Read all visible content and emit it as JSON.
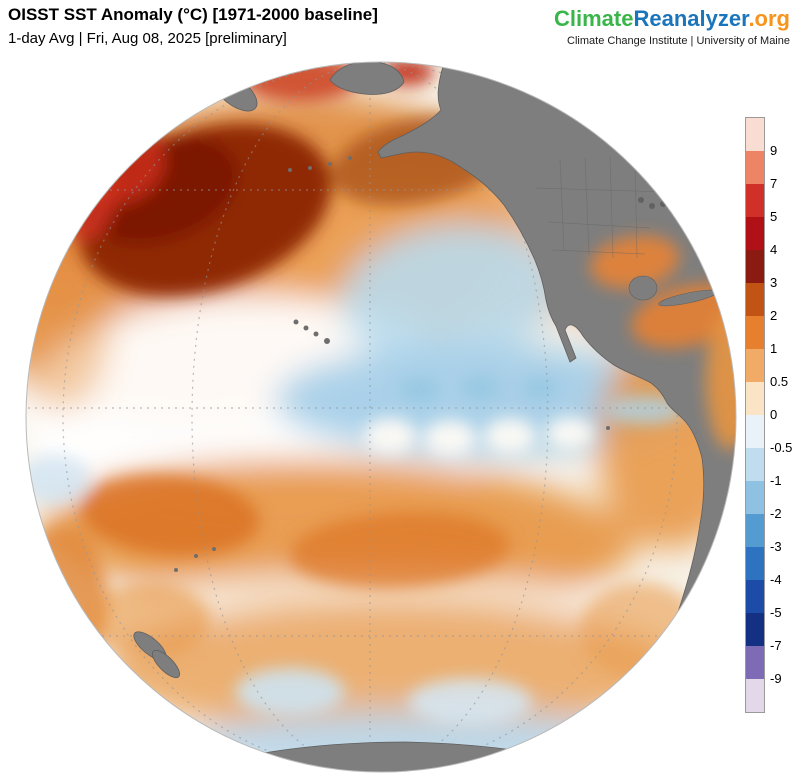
{
  "header": {
    "title": "OISST SST Anomaly (°C) [1971-2000 baseline]",
    "subtitle": "1-day Avg | Fri, Aug 08, 2025 [preliminary]"
  },
  "brand": {
    "climate": "Climate",
    "reanalyzer": "Reanalyzer",
    "org": ".org",
    "tagline": "Climate Change Institute | University of Maine",
    "colors": {
      "climate": "#39b54a",
      "reanalyzer": "#1b75bb",
      "org": "#f7941e"
    }
  },
  "chart_data": {
    "type": "heatmap",
    "title": "OISST SST Anomaly (°C) [1971-2000 baseline]",
    "subtitle": "1-day Avg | Fri, Aug 08, 2025 [preliminary]",
    "variable": "Sea surface temperature anomaly (°C) relative to 1971-2000 baseline",
    "date": "Fri, Aug 08, 2025",
    "averaging": "1-day Avg",
    "status": "preliminary",
    "projection": "orthographic globe centered on the Pacific Ocean",
    "legend_position": "right",
    "features": [
      "Strong warm anomaly (about +3 to +5 °C, dark red) in the Northwest Pacific",
      "Cool anomaly band (about -0.5 to -1 °C) along the eastern equatorial Pacific with tropical instability wave pattern",
      "Broad warm anomalies (+0.5 to +2 °C) across the northern and southern subtropical Pacific",
      "Near-neutral (white) band in the central South Pacific",
      "Cool patches near the Antarctic coastal waters at the bottom of the globe",
      "Gray landmasses: Siberia/Chukotka, Alaska, North America, Central America, western South America, Hawaii, New Zealand, Antarctica"
    ],
    "colorbar": {
      "units": "°C",
      "orientation": "vertical",
      "tick_labels": [
        "9",
        "7",
        "5",
        "4",
        "3",
        "2",
        "1",
        "0.5",
        "0",
        "-0.5",
        "-1",
        "-2",
        "-3",
        "-4",
        "-5",
        "-7",
        "-9"
      ],
      "segment_colors": [
        "#f9dcd2",
        "#ed8465",
        "#d03027",
        "#b01117",
        "#8b1a10",
        "#c15415",
        "#e67f2e",
        "#f2ab66",
        "#fbe3c6",
        "#e9f2f8",
        "#c0dcef",
        "#8ec1e2",
        "#539bd1",
        "#2e73c0",
        "#1c4ca8",
        "#143083",
        "#7d6bb5",
        "#e3d7ea"
      ]
    }
  }
}
